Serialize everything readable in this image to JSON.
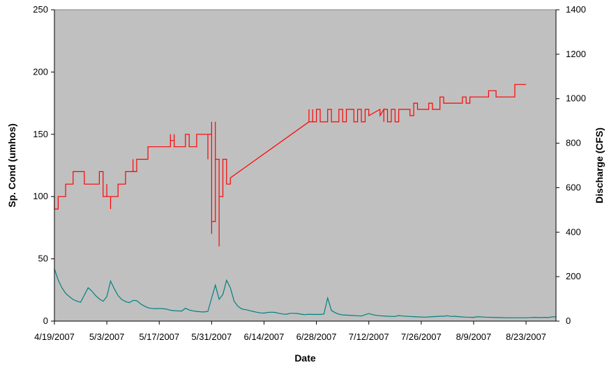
{
  "chart_data": {
    "type": "line",
    "title": "",
    "xlabel": "Date",
    "ylabel_left": "Sp. Cond (umhos)",
    "ylabel_right": "Discharge (CFS)",
    "x_tick_labels": [
      "4/19/2007",
      "5/3/2007",
      "5/17/2007",
      "5/31/2007",
      "6/14/2007",
      "6/28/2007",
      "7/12/2007",
      "7/26/2007",
      "8/9/2007",
      "8/23/2007"
    ],
    "x_range": [
      "4/19/2007",
      "8/31/2007"
    ],
    "ylim_left": [
      0,
      250
    ],
    "yticks_left": [
      0,
      50,
      100,
      150,
      200,
      250
    ],
    "ylim_right": [
      0,
      1400
    ],
    "yticks_right": [
      0,
      200,
      400,
      600,
      800,
      1000,
      1200,
      1400
    ],
    "grid": false,
    "legend": "none",
    "plot_background": "#c0c0c0",
    "series": [
      {
        "axis": "left",
        "color": "#ff0000",
        "points": [
          [
            "4/19/2007",
            90
          ],
          [
            "4/19/2007",
            100
          ],
          [
            "4/19/2007",
            90
          ],
          [
            "4/20/2007",
            90
          ],
          [
            "4/20/2007",
            100
          ],
          [
            "4/21/2007",
            100
          ],
          [
            "4/22/2007",
            100
          ],
          [
            "4/22/2007",
            110
          ],
          [
            "4/24/2007",
            110
          ],
          [
            "4/24/2007",
            120
          ],
          [
            "4/27/2007",
            120
          ],
          [
            "4/27/2007",
            110
          ],
          [
            "5/1/2007",
            110
          ],
          [
            "5/1/2007",
            120
          ],
          [
            "5/2/2007",
            120
          ],
          [
            "5/2/2007",
            100
          ],
          [
            "5/3/2007",
            100
          ],
          [
            "5/3/2007",
            110
          ],
          [
            "5/3/2007",
            100
          ],
          [
            "5/4/2007",
            100
          ],
          [
            "5/4/2007",
            90
          ],
          [
            "5/4/2007",
            100
          ],
          [
            "5/5/2007",
            100
          ],
          [
            "5/6/2007",
            100
          ],
          [
            "5/6/2007",
            110
          ],
          [
            "5/8/2007",
            110
          ],
          [
            "5/8/2007",
            120
          ],
          [
            "5/10/2007",
            120
          ],
          [
            "5/10/2007",
            130
          ],
          [
            "5/10/2007",
            120
          ],
          [
            "5/11/2007",
            120
          ],
          [
            "5/11/2007",
            130
          ],
          [
            "5/11/2007",
            125
          ],
          [
            "5/11/2007",
            130
          ],
          [
            "5/14/2007",
            130
          ],
          [
            "5/14/2007",
            140
          ],
          [
            "5/20/2007",
            140
          ],
          [
            "5/20/2007",
            150
          ],
          [
            "5/20/2007",
            145
          ],
          [
            "5/21/2007",
            145
          ],
          [
            "5/21/2007",
            150
          ],
          [
            "5/21/2007",
            140
          ],
          [
            "5/24/2007",
            140
          ],
          [
            "5/24/2007",
            150
          ],
          [
            "5/25/2007",
            150
          ],
          [
            "5/25/2007",
            140
          ],
          [
            "5/27/2007",
            140
          ],
          [
            "5/27/2007",
            150
          ],
          [
            "5/30/2007",
            150
          ],
          [
            "5/30/2007",
            130
          ],
          [
            "5/30/2007",
            150
          ],
          [
            "5/31/2007",
            150
          ],
          [
            "5/31/2007",
            70
          ],
          [
            "5/31/2007",
            160
          ],
          [
            "5/31/2007",
            80
          ],
          [
            "6/1/2007",
            80
          ],
          [
            "6/1/2007",
            160
          ],
          [
            "6/1/2007",
            130
          ],
          [
            "6/2/2007",
            130
          ],
          [
            "6/2/2007",
            60
          ],
          [
            "6/2/2007",
            120
          ],
          [
            "6/2/2007",
            100
          ],
          [
            "6/3/2007",
            100
          ],
          [
            "6/3/2007",
            130
          ],
          [
            "6/4/2007",
            130
          ],
          [
            "6/4/2007",
            110
          ],
          [
            "6/5/2007",
            110
          ],
          [
            "6/5/2007",
            115
          ],
          [
            "6/26/2007",
            160
          ],
          [
            "6/26/2007",
            170
          ],
          [
            "6/26/2007",
            160
          ],
          [
            "6/27/2007",
            160
          ],
          [
            "6/27/2007",
            170
          ],
          [
            "6/27/2007",
            160
          ],
          [
            "6/28/2007",
            160
          ],
          [
            "6/28/2007",
            170
          ],
          [
            "6/29/2007",
            170
          ],
          [
            "6/29/2007",
            160
          ],
          [
            "7/1/2007",
            160
          ],
          [
            "7/1/2007",
            170
          ],
          [
            "7/2/2007",
            170
          ],
          [
            "7/2/2007",
            160
          ],
          [
            "7/4/2007",
            160
          ],
          [
            "7/4/2007",
            170
          ],
          [
            "7/5/2007",
            170
          ],
          [
            "7/5/2007",
            160
          ],
          [
            "7/6/2007",
            160
          ],
          [
            "7/6/2007",
            170
          ],
          [
            "7/8/2007",
            170
          ],
          [
            "7/8/2007",
            160
          ],
          [
            "7/9/2007",
            160
          ],
          [
            "7/9/2007",
            170
          ],
          [
            "7/10/2007",
            170
          ],
          [
            "7/10/2007",
            160
          ],
          [
            "7/11/2007",
            160
          ],
          [
            "7/11/2007",
            170
          ],
          [
            "7/12/2007",
            170
          ],
          [
            "7/12/2007",
            165
          ],
          [
            "7/15/2007",
            170
          ],
          [
            "7/15/2007",
            165
          ],
          [
            "7/16/2007",
            170
          ],
          [
            "7/16/2007",
            160
          ],
          [
            "7/16/2007",
            170
          ],
          [
            "7/17/2007",
            170
          ],
          [
            "7/17/2007",
            160
          ],
          [
            "7/18/2007",
            160
          ],
          [
            "7/18/2007",
            170
          ],
          [
            "7/19/2007",
            170
          ],
          [
            "7/19/2007",
            160
          ],
          [
            "7/20/2007",
            160
          ],
          [
            "7/20/2007",
            170
          ],
          [
            "7/23/2007",
            170
          ],
          [
            "7/23/2007",
            165
          ],
          [
            "7/24/2007",
            165
          ],
          [
            "7/24/2007",
            175
          ],
          [
            "7/25/2007",
            175
          ],
          [
            "7/25/2007",
            170
          ],
          [
            "7/28/2007",
            170
          ],
          [
            "7/28/2007",
            175
          ],
          [
            "7/29/2007",
            175
          ],
          [
            "7/29/2007",
            170
          ],
          [
            "7/31/2007",
            170
          ],
          [
            "7/31/2007",
            180
          ],
          [
            "8/1/2007",
            180
          ],
          [
            "8/1/2007",
            175
          ],
          [
            "8/6/2007",
            175
          ],
          [
            "8/6/2007",
            180
          ],
          [
            "8/7/2007",
            180
          ],
          [
            "8/7/2007",
            175
          ],
          [
            "8/8/2007",
            175
          ],
          [
            "8/8/2007",
            180
          ],
          [
            "8/13/2007",
            180
          ],
          [
            "8/13/2007",
            185
          ],
          [
            "8/15/2007",
            185
          ],
          [
            "8/15/2007",
            180
          ],
          [
            "8/20/2007",
            180
          ],
          [
            "8/20/2007",
            190
          ],
          [
            "8/23/2007",
            190
          ]
        ]
      },
      {
        "axis": "right",
        "color": "#008080",
        "points": [
          [
            "4/19/2007",
            235
          ],
          [
            "4/20/2007",
            185
          ],
          [
            "4/21/2007",
            150
          ],
          [
            "4/22/2007",
            125
          ],
          [
            "4/23/2007",
            110
          ],
          [
            "4/24/2007",
            97
          ],
          [
            "4/25/2007",
            90
          ],
          [
            "4/26/2007",
            85
          ],
          [
            "4/28/2007",
            150
          ],
          [
            "4/29/2007",
            135
          ],
          [
            "4/30/2007",
            115
          ],
          [
            "5/1/2007",
            100
          ],
          [
            "5/2/2007",
            89
          ],
          [
            "5/3/2007",
            110
          ],
          [
            "5/4/2007",
            180
          ],
          [
            "5/5/2007",
            145
          ],
          [
            "5/6/2007",
            115
          ],
          [
            "5/7/2007",
            97
          ],
          [
            "5/8/2007",
            88
          ],
          [
            "5/9/2007",
            83
          ],
          [
            "5/10/2007",
            93
          ],
          [
            "5/11/2007",
            92
          ],
          [
            "5/12/2007",
            78
          ],
          [
            "5/13/2007",
            68
          ],
          [
            "5/14/2007",
            60
          ],
          [
            "5/15/2007",
            57
          ],
          [
            "5/16/2007",
            56
          ],
          [
            "5/17/2007",
            57
          ],
          [
            "5/18/2007",
            56
          ],
          [
            "5/19/2007",
            54
          ],
          [
            "5/20/2007",
            49
          ],
          [
            "5/21/2007",
            47
          ],
          [
            "5/22/2007",
            46
          ],
          [
            "5/23/2007",
            45
          ],
          [
            "5/24/2007",
            58
          ],
          [
            "5/25/2007",
            50
          ],
          [
            "5/26/2007",
            46
          ],
          [
            "5/27/2007",
            44
          ],
          [
            "5/28/2007",
            42
          ],
          [
            "5/29/2007",
            41
          ],
          [
            "5/30/2007",
            44
          ],
          [
            "6/1/2007",
            162
          ],
          [
            "6/2/2007",
            98
          ],
          [
            "6/3/2007",
            120
          ],
          [
            "6/4/2007",
            184
          ],
          [
            "6/5/2007",
            150
          ],
          [
            "6/6/2007",
            90
          ],
          [
            "6/7/2007",
            67
          ],
          [
            "6/8/2007",
            55
          ],
          [
            "6/9/2007",
            52
          ],
          [
            "6/10/2007",
            48
          ],
          [
            "6/11/2007",
            44
          ],
          [
            "6/12/2007",
            40
          ],
          [
            "6/13/2007",
            37
          ],
          [
            "6/14/2007",
            36
          ],
          [
            "6/15/2007",
            39
          ],
          [
            "6/16/2007",
            40
          ],
          [
            "6/17/2007",
            39
          ],
          [
            "6/18/2007",
            35
          ],
          [
            "6/19/2007",
            32
          ],
          [
            "6/20/2007",
            31
          ],
          [
            "6/21/2007",
            35
          ],
          [
            "6/22/2007",
            35
          ],
          [
            "6/23/2007",
            34
          ],
          [
            "6/24/2007",
            31
          ],
          [
            "6/25/2007",
            29
          ],
          [
            "6/26/2007",
            31
          ],
          [
            "6/27/2007",
            30
          ],
          [
            "6/28/2007",
            30
          ],
          [
            "6/29/2007",
            30
          ],
          [
            "6/30/2007",
            32
          ],
          [
            "7/1/2007",
            104
          ],
          [
            "7/2/2007",
            48
          ],
          [
            "7/3/2007",
            38
          ],
          [
            "7/4/2007",
            31
          ],
          [
            "7/5/2007",
            28
          ],
          [
            "7/6/2007",
            27
          ],
          [
            "7/8/2007",
            25
          ],
          [
            "7/10/2007",
            23
          ],
          [
            "7/12/2007",
            34
          ],
          [
            "7/13/2007",
            29
          ],
          [
            "7/14/2007",
            26
          ],
          [
            "7/15/2007",
            24
          ],
          [
            "7/17/2007",
            22
          ],
          [
            "7/19/2007",
            21
          ],
          [
            "7/20/2007",
            25
          ],
          [
            "7/21/2007",
            23
          ],
          [
            "7/23/2007",
            21
          ],
          [
            "7/25/2007",
            19
          ],
          [
            "7/27/2007",
            18
          ],
          [
            "7/29/2007",
            20
          ],
          [
            "7/31/2007",
            22
          ],
          [
            "8/1/2007",
            22
          ],
          [
            "8/2/2007",
            24
          ],
          [
            "8/3/2007",
            21
          ],
          [
            "8/4/2007",
            22
          ],
          [
            "8/5/2007",
            20
          ],
          [
            "8/7/2007",
            18
          ],
          [
            "8/9/2007",
            17
          ],
          [
            "8/10/2007",
            20
          ],
          [
            "8/12/2007",
            18
          ],
          [
            "8/14/2007",
            17
          ],
          [
            "8/16/2007",
            16
          ],
          [
            "8/18/2007",
            15
          ],
          [
            "8/21/2007",
            15
          ],
          [
            "8/23/2007",
            15
          ],
          [
            "8/25/2007",
            17
          ],
          [
            "8/27/2007",
            16
          ],
          [
            "8/28/2007",
            17
          ],
          [
            "8/29/2007",
            16
          ],
          [
            "8/30/2007",
            19
          ],
          [
            "8/31/2007",
            19
          ]
        ]
      }
    ]
  }
}
